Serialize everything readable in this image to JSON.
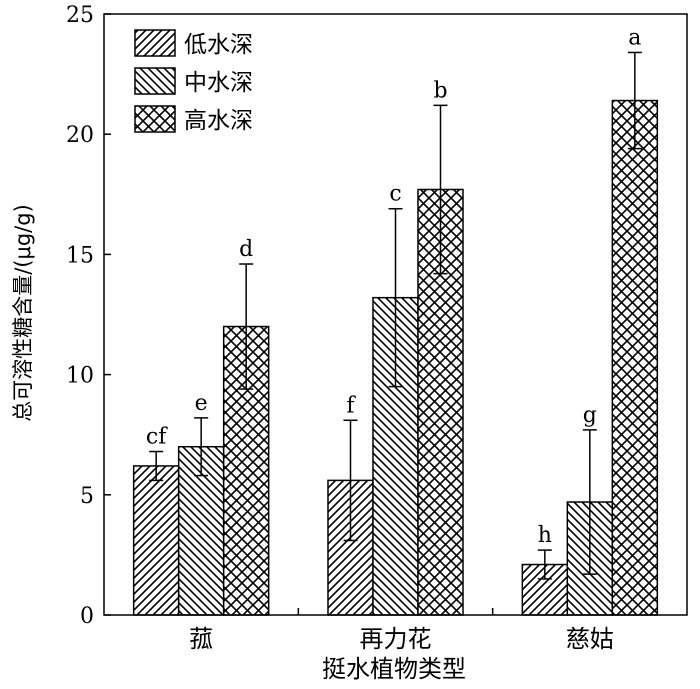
{
  "chart_data": {
    "type": "bar",
    "xlabel": "挺水植物类型",
    "ylabel": "总可溶性糖含量/(μg/g)",
    "ylim": [
      0,
      25
    ],
    "yticks": [
      0,
      5,
      10,
      15,
      20,
      25
    ],
    "categories": [
      "菰",
      "再力花",
      "慈姑"
    ],
    "legend_position": "top-left",
    "grid": false,
    "series": [
      {
        "name": "低水深",
        "pattern": "diag-forward",
        "values": [
          6.2,
          5.6,
          2.1
        ],
        "errors": [
          0.6,
          2.5,
          0.6
        ],
        "letters": [
          "cf",
          "f",
          "h"
        ]
      },
      {
        "name": "中水深",
        "pattern": "diag-backward",
        "values": [
          7.0,
          13.2,
          4.7
        ],
        "errors": [
          1.2,
          3.7,
          3.0
        ],
        "letters": [
          "e",
          "c",
          "g"
        ]
      },
      {
        "name": "高水深",
        "pattern": "crosshatch",
        "values": [
          12.0,
          17.7,
          21.4
        ],
        "errors": [
          2.6,
          3.5,
          2.0
        ],
        "letters": [
          "d",
          "b",
          "a"
        ]
      }
    ]
  }
}
